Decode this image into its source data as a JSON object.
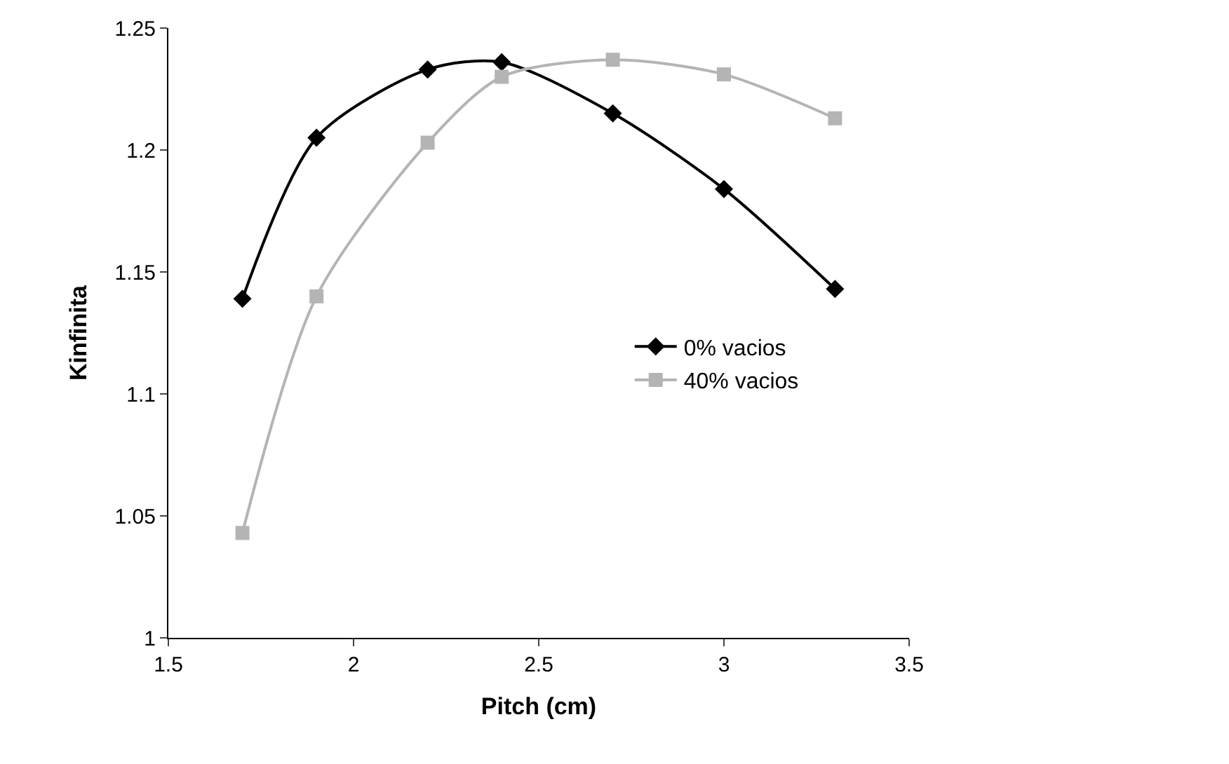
{
  "chart_data": {
    "type": "line",
    "xlabel": "Pitch (cm)",
    "ylabel": "Kinfinita",
    "x": [
      1.7,
      1.9,
      2.2,
      2.4,
      2.7,
      3.0,
      3.3
    ],
    "series": [
      {
        "name": "0% vacios",
        "color": "#000000",
        "marker": "diamond",
        "values": [
          1.139,
          1.205,
          1.233,
          1.236,
          1.215,
          1.184,
          1.143
        ]
      },
      {
        "name": "40% vacios",
        "color": "#b4b4b4",
        "marker": "square",
        "values": [
          1.043,
          1.14,
          1.203,
          1.23,
          1.237,
          1.231,
          1.213
        ]
      }
    ],
    "xlim": [
      1.5,
      3.5
    ],
    "xticks": [
      1.5,
      2,
      2.5,
      3,
      3.5
    ],
    "ylim": [
      1,
      1.25
    ],
    "yticks": [
      1,
      1.05,
      1.1,
      1.15,
      1.2,
      1.25
    ],
    "legend": "right",
    "line_style": "solid"
  }
}
